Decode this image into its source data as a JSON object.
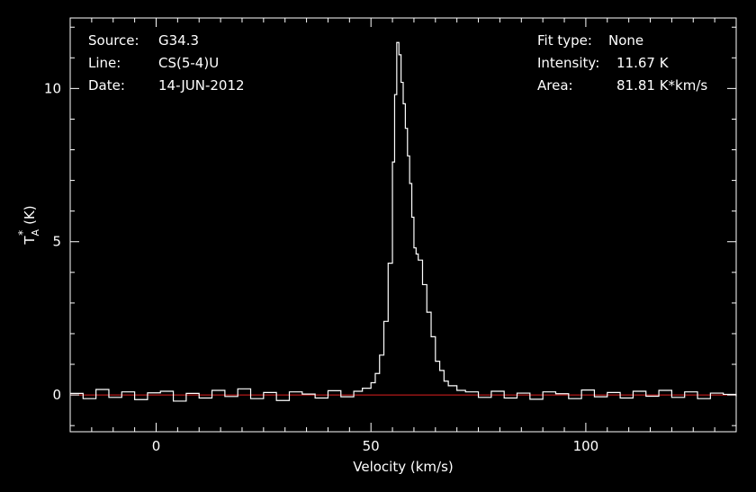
{
  "header_left": {
    "source_label": "Source:",
    "source_value": "G34.3",
    "line_label": "Line:",
    "line_value": "CS(5-4)U",
    "date_label": "Date:",
    "date_value": "14-JUN-2012"
  },
  "header_right": {
    "fit_label": "Fit type:",
    "fit_value": "None",
    "intensity_label": "Intensity:",
    "intensity_value": "11.67 K",
    "area_label": "Area:",
    "area_value": "81.81 K*km/s"
  },
  "chart_data": {
    "type": "line",
    "xlabel": "Velocity (km/s)",
    "ylabel": "T",
    "ylabel_sup": "*",
    "ylabel_sub": "A",
    "ylabel_unit": "(K)",
    "xlim": [
      -20,
      135
    ],
    "ylim": [
      -1.2,
      12.3
    ],
    "xticks": [
      0,
      50,
      100
    ],
    "yticks": [
      0,
      5,
      10
    ],
    "grid": false,
    "colors": {
      "spectrum": "#ffffff",
      "baseline": "#e02020",
      "axes": "#ffffff",
      "background": "#000000"
    },
    "baseline_y": 0,
    "series": [
      {
        "x": [
          -20,
          -17,
          -14,
          -11,
          -8,
          -5,
          -2,
          1,
          4,
          7,
          10,
          13,
          16,
          19,
          22,
          25,
          28,
          31,
          34,
          37,
          40,
          43,
          46,
          48,
          50,
          51,
          52,
          53,
          54,
          55,
          55.5,
          56,
          56.5,
          57,
          57.5,
          58,
          58.5,
          59,
          59.5,
          60,
          60.5,
          61,
          62,
          63,
          64,
          65,
          66,
          67,
          68,
          70,
          72,
          75,
          78,
          81,
          84,
          87,
          90,
          93,
          96,
          99,
          102,
          105,
          108,
          111,
          114,
          117,
          120,
          123,
          126,
          129,
          132,
          135
        ],
        "values": [
          0.05,
          -0.12,
          0.18,
          -0.08,
          0.1,
          -0.15,
          0.07,
          0.12,
          -0.2,
          0.05,
          -0.1,
          0.15,
          -0.05,
          0.2,
          -0.12,
          0.08,
          -0.18,
          0.1,
          0.03,
          -0.1,
          0.14,
          -0.06,
          0.12,
          0.22,
          0.4,
          0.7,
          1.3,
          2.4,
          4.3,
          7.6,
          9.8,
          11.5,
          11.1,
          10.2,
          9.5,
          8.7,
          7.8,
          6.9,
          5.8,
          4.8,
          4.6,
          4.4,
          3.6,
          2.7,
          1.9,
          1.1,
          0.8,
          0.45,
          0.3,
          0.15,
          0.1,
          -0.08,
          0.12,
          -0.1,
          0.06,
          -0.14,
          0.1,
          0.04,
          -0.12,
          0.16,
          -0.06,
          0.08,
          -0.1,
          0.12,
          -0.04,
          0.15,
          -0.08,
          0.1,
          -0.12,
          0.06,
          0.02,
          -0.05
        ]
      }
    ]
  }
}
